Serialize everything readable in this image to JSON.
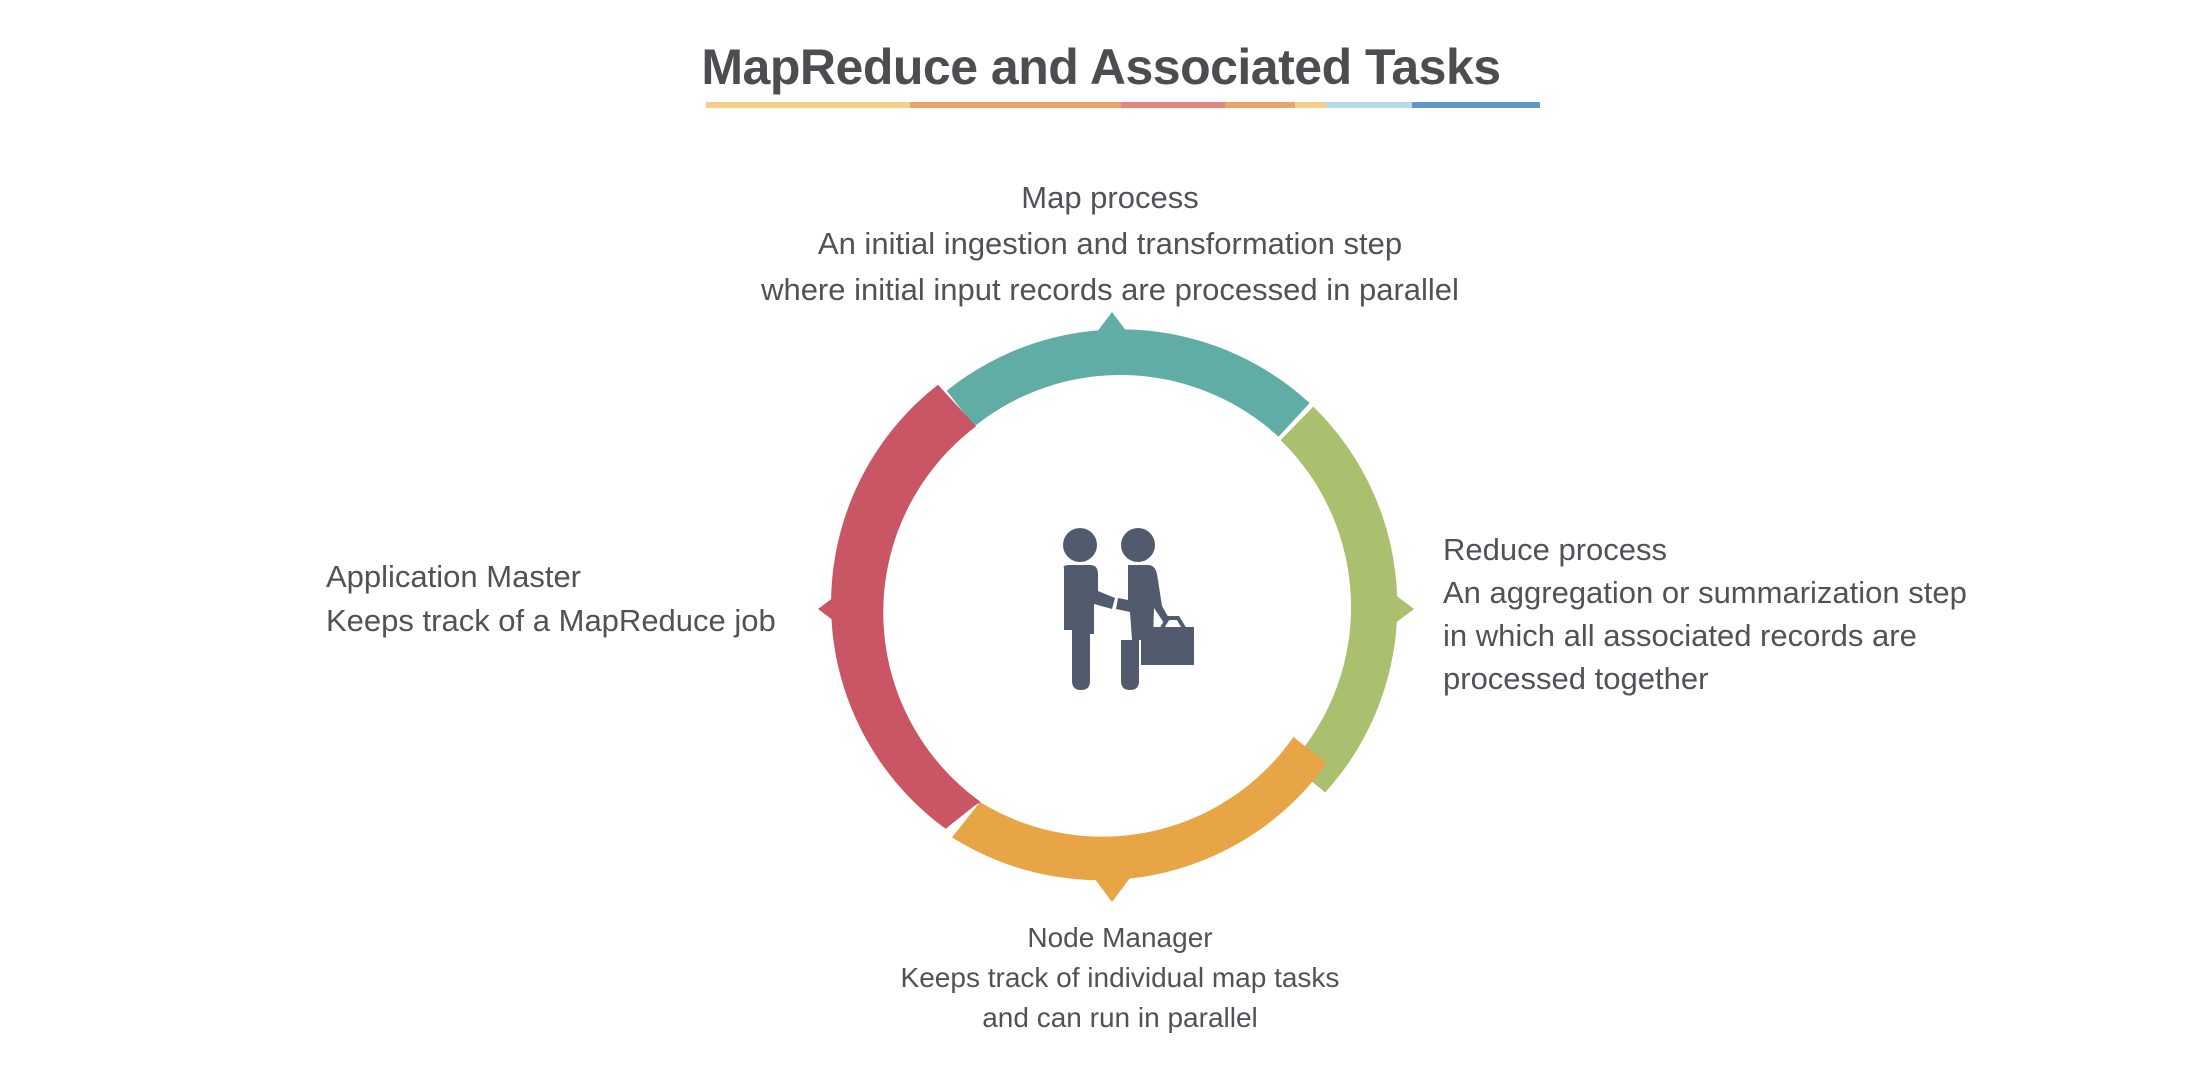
{
  "title": "MapReduce and Associated Tasks",
  "underline_colors": [
    "#f5cf88",
    "#eaa46a",
    "#e1857e",
    "#eaa46a",
    "#f5cf88",
    "#b7dbe8",
    "#5f98c6"
  ],
  "segments": {
    "map": {
      "color": "#5fada5"
    },
    "reduce": {
      "color": "#abc06e"
    },
    "node_manager": {
      "color": "#e8a545"
    },
    "application_master": {
      "color": "#c95565"
    }
  },
  "center_icon": {
    "name": "handshake-icon",
    "color": "#525b6d"
  },
  "labels": {
    "map": {
      "heading": "Map process",
      "lines": [
        "An initial ingestion and transformation step",
        "where initial input records are processed in parallel"
      ]
    },
    "reduce": {
      "heading": "Reduce process",
      "lines": [
        "An aggregation or summarization step",
        "in which all associated records are",
        "processed together"
      ]
    },
    "application_master": {
      "heading": "Application Master",
      "lines": [
        "Keeps track of a MapReduce job"
      ]
    },
    "node_manager": {
      "heading": "Node Manager",
      "lines": [
        "Keeps track of individual map tasks",
        "and can run in parallel"
      ]
    }
  }
}
